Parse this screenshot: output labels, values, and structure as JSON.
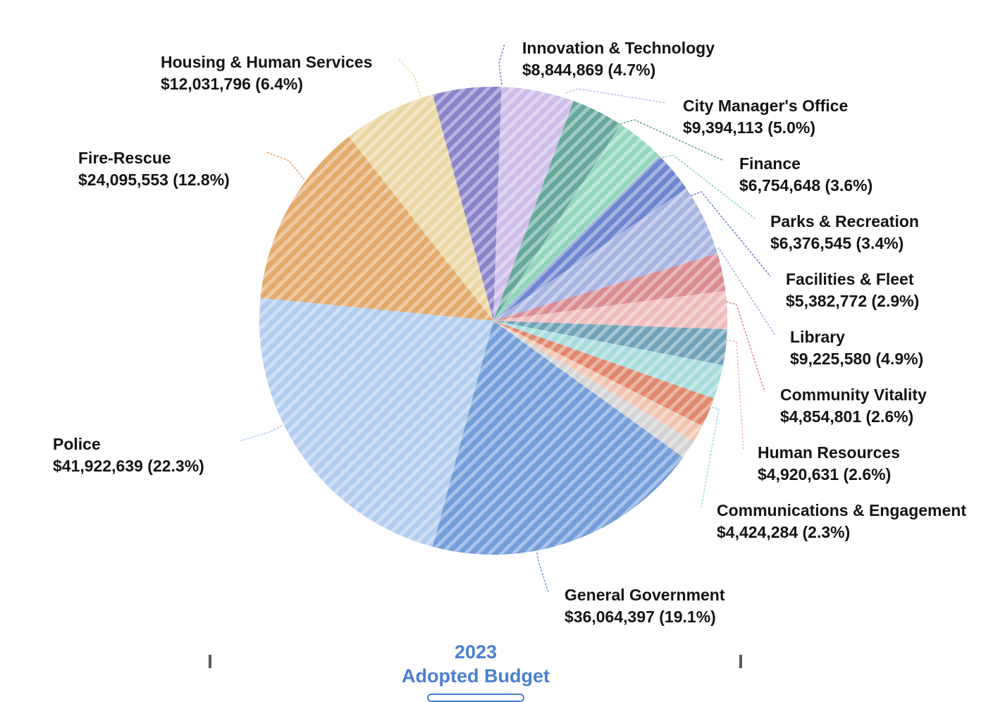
{
  "caption": {
    "year": "2023",
    "subtitle": "Adopted Budget"
  },
  "chart_data": {
    "type": "pie",
    "title": "",
    "pattern": "diagonal-stripes",
    "slices": [
      {
        "name": "Innovation & Technology",
        "value_label": "$8,844,869 (4.7%)",
        "value": 8844869,
        "percent": 4.7,
        "color": "#8b83c9"
      },
      {
        "name": "City Manager's Office",
        "value_label": "$9,394,113 (5.0%)",
        "value": 9394113,
        "percent": 5.0,
        "color": "#cdbde8"
      },
      {
        "name": "Finance",
        "value_label": "$6,754,648 (3.6%)",
        "value": 6754648,
        "percent": 3.6,
        "color": "#66a99c"
      },
      {
        "name": "Parks & Recreation",
        "value_label": "$6,376,545 (3.4%)",
        "value": 6376545,
        "percent": 3.4,
        "color": "#92d6bd"
      },
      {
        "name": "Facilities & Fleet",
        "value_label": "$5,382,772 (2.9%)",
        "value": 5382772,
        "percent": 2.9,
        "color": "#6f86cf"
      },
      {
        "name": "Library",
        "value_label": "$9,225,580 (4.9%)",
        "value": 9225580,
        "percent": 4.9,
        "color": "#a8b4e2"
      },
      {
        "name": "Community Vitality",
        "value_label": "$4,854,801 (2.6%)",
        "value": 4854801,
        "percent": 2.6,
        "color": "#d98c91"
      },
      {
        "name": "Human Resources",
        "value_label": "$4,920,631 (2.6%)",
        "value": 4920631,
        "percent": 2.6,
        "color": "#efbcbc"
      },
      {
        "name": "",
        "value_label": "",
        "value": 4600000,
        "percent": 2.4,
        "color": "#6fa3b9"
      },
      {
        "name": "Communications & Engagement",
        "value_label": "$4,424,284 (2.3%)",
        "value": 4424284,
        "percent": 2.3,
        "color": "#a6dcdc"
      },
      {
        "name": "",
        "value_label": "",
        "value": 3800000,
        "percent": 2.0,
        "color": "#e0876c"
      },
      {
        "name": "",
        "value_label": "",
        "value": 2300000,
        "percent": 1.2,
        "color": "#f2c4b0"
      },
      {
        "name": "",
        "value_label": "",
        "value": 2400000,
        "percent": 1.3,
        "color": "#d3d3d3"
      },
      {
        "name": "General Government",
        "value_label": "$36,064,397 (19.1%)",
        "value": 36064397,
        "percent": 19.1,
        "color": "#739ed9"
      },
      {
        "name": "Police",
        "value_label": "$41,922,639 (22.3%)",
        "value": 41922639,
        "percent": 22.3,
        "color": "#b3cdef"
      },
      {
        "name": "Fire-Rescue",
        "value_label": "$24,095,553 (12.8%)",
        "value": 24095553,
        "percent": 12.8,
        "color": "#e3aa6c"
      },
      {
        "name": "Housing & Human Services",
        "value_label": "$12,031,796 (6.4%)",
        "value": 12031796,
        "percent": 6.4,
        "color": "#ead7a3"
      }
    ]
  }
}
